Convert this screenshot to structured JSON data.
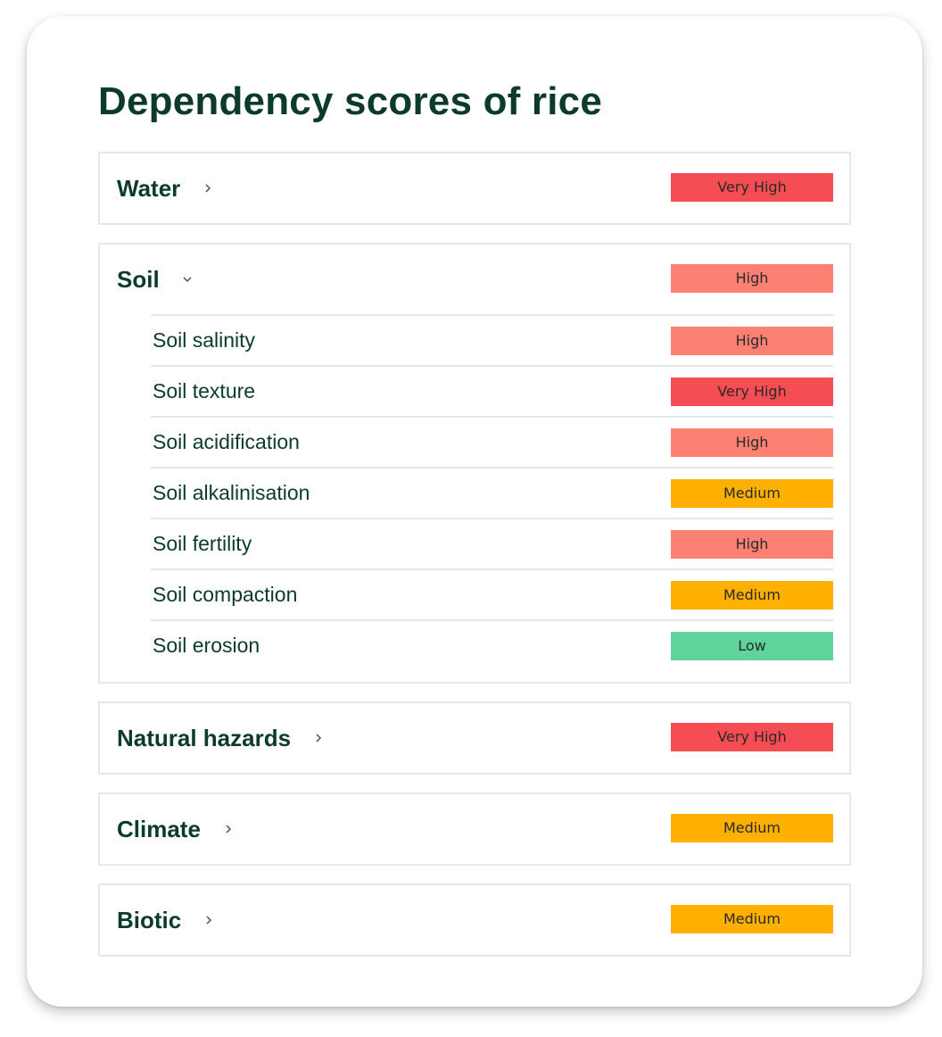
{
  "title": "Dependency scores of rice",
  "colors": {
    "very_high": "#f64c53",
    "high": "#fd8173",
    "medium": "#ffb000",
    "low": "#5fd39b",
    "text": "#0c3b2b"
  },
  "groups": [
    {
      "label": "Water",
      "score": "Very High",
      "level": "very_high",
      "expanded": false,
      "icon": "chevron-right-icon"
    },
    {
      "label": "Soil",
      "score": "High",
      "level": "high",
      "expanded": true,
      "icon": "chevron-down-icon",
      "items": [
        {
          "label": "Soil salinity",
          "score": "High",
          "level": "high"
        },
        {
          "label": "Soil texture",
          "score": "Very High",
          "level": "very_high"
        },
        {
          "label": "Soil acidification",
          "score": "High",
          "level": "high"
        },
        {
          "label": "Soil alkalinisation",
          "score": "Medium",
          "level": "medium"
        },
        {
          "label": "Soil fertility",
          "score": "High",
          "level": "high"
        },
        {
          "label": "Soil compaction",
          "score": "Medium",
          "level": "medium"
        },
        {
          "label": "Soil erosion",
          "score": "Low",
          "level": "low"
        }
      ]
    },
    {
      "label": "Natural hazards",
      "score": "Very High",
      "level": "very_high",
      "expanded": false,
      "icon": "chevron-right-icon"
    },
    {
      "label": "Climate",
      "score": "Medium",
      "level": "medium",
      "expanded": false,
      "icon": "chevron-right-icon"
    },
    {
      "label": "Biotic",
      "score": "Medium",
      "level": "medium",
      "expanded": false,
      "icon": "chevron-right-icon"
    }
  ]
}
